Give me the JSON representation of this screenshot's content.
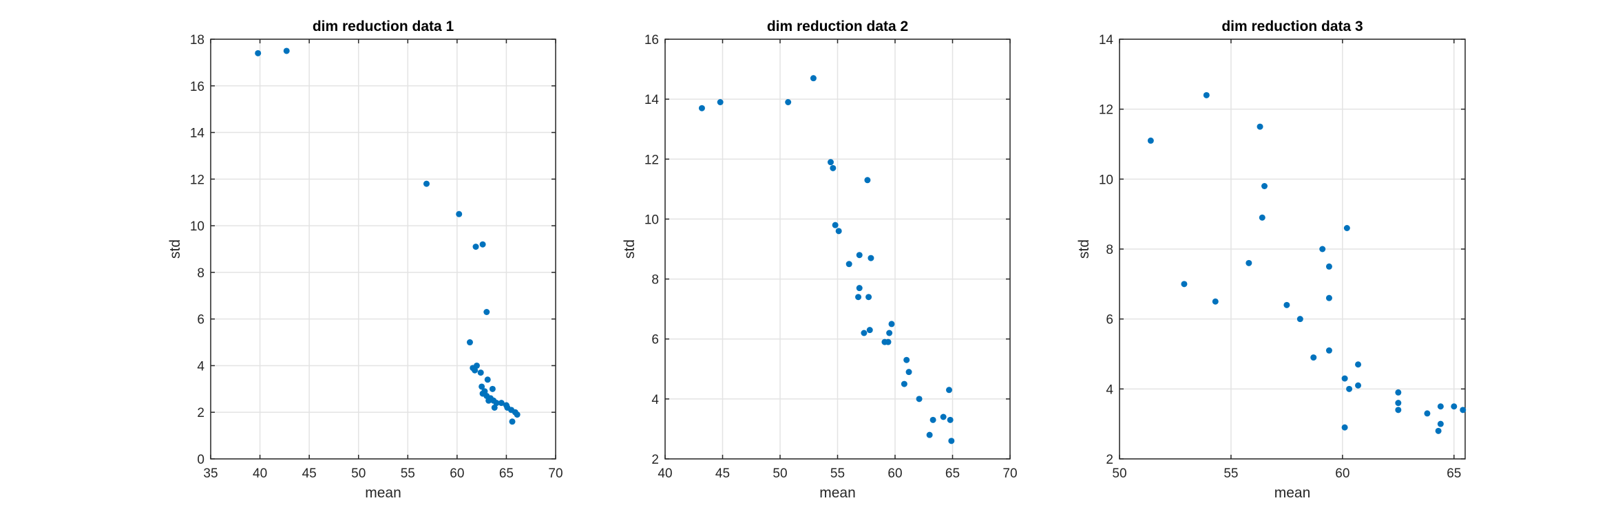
{
  "chart_data": [
    {
      "type": "scatter",
      "title": "dim reduction data 1",
      "xlabel": "mean",
      "ylabel": "std",
      "xlim": [
        35,
        70
      ],
      "ylim": [
        0,
        18
      ],
      "xticks": [
        35,
        40,
        45,
        50,
        55,
        60,
        65,
        70
      ],
      "yticks": [
        0,
        2,
        4,
        6,
        8,
        10,
        12,
        14,
        16,
        18
      ],
      "grid": true,
      "color": "#0072BD",
      "x": [
        39.8,
        42.7,
        56.9,
        60.2,
        61.9,
        62.6,
        63.0,
        61.3,
        61.6,
        62.0,
        62.4,
        61.8,
        63.1,
        62.5,
        62.8,
        63.6,
        62.6,
        63.0,
        63.4,
        63.7,
        64.0,
        63.2,
        64.5,
        63.8,
        65.0,
        65.5,
        65.9,
        66.1,
        65.6,
        65.1
      ],
      "y": [
        17.4,
        17.5,
        11.8,
        10.5,
        9.1,
        9.2,
        6.3,
        5.0,
        3.9,
        4.0,
        3.7,
        3.8,
        3.4,
        3.1,
        2.9,
        3.0,
        2.8,
        2.7,
        2.6,
        2.5,
        2.4,
        2.5,
        2.4,
        2.2,
        2.3,
        2.1,
        2.0,
        1.9,
        1.6,
        2.2
      ]
    },
    {
      "type": "scatter",
      "title": "dim reduction data 2",
      "xlabel": "mean",
      "ylabel": "std",
      "xlim": [
        40,
        70
      ],
      "ylim": [
        2,
        16
      ],
      "xticks": [
        40,
        45,
        50,
        55,
        60,
        65,
        70
      ],
      "yticks": [
        2,
        4,
        6,
        8,
        10,
        12,
        14,
        16
      ],
      "grid": true,
      "color": "#0072BD",
      "x": [
        43.2,
        44.8,
        50.7,
        52.9,
        54.4,
        54.6,
        57.6,
        54.8,
        55.1,
        56.0,
        56.9,
        57.9,
        56.9,
        56.8,
        57.7,
        57.3,
        57.8,
        59.7,
        59.5,
        59.1,
        59.4,
        61.0,
        61.2,
        60.8,
        62.1,
        64.7,
        64.2,
        63.3,
        64.8,
        63.0,
        64.9
      ],
      "y": [
        13.7,
        13.9,
        13.9,
        14.7,
        11.9,
        11.7,
        11.3,
        9.8,
        9.6,
        8.5,
        8.8,
        8.7,
        7.7,
        7.4,
        7.4,
        6.2,
        6.3,
        6.5,
        6.2,
        5.9,
        5.9,
        5.3,
        4.9,
        4.5,
        4.0,
        4.3,
        3.4,
        3.3,
        3.3,
        2.8,
        2.6
      ]
    },
    {
      "type": "scatter",
      "title": "dim reduction data 3",
      "xlabel": "mean",
      "ylabel": "std",
      "xlim": [
        50,
        65.5
      ],
      "ylim": [
        2,
        14
      ],
      "xticks": [
        50,
        55,
        60,
        65
      ],
      "yticks": [
        2,
        4,
        6,
        8,
        10,
        12,
        14
      ],
      "grid": true,
      "color": "#0072BD",
      "x": [
        51.4,
        53.9,
        56.3,
        56.5,
        56.4,
        60.2,
        59.1,
        55.8,
        59.4,
        52.9,
        54.3,
        57.5,
        58.1,
        59.4,
        58.7,
        59.4,
        60.7,
        60.1,
        60.7,
        60.3,
        62.5,
        62.5,
        62.5,
        63.8,
        64.4,
        65.0,
        65.4,
        64.4,
        64.3,
        60.1
      ],
      "y": [
        11.1,
        12.4,
        11.5,
        9.8,
        8.9,
        8.6,
        8.0,
        7.6,
        7.5,
        7.0,
        6.5,
        6.4,
        6.0,
        6.6,
        4.9,
        5.1,
        4.7,
        4.3,
        4.1,
        4.0,
        3.9,
        3.6,
        3.4,
        3.3,
        3.5,
        3.5,
        3.4,
        3.0,
        2.8,
        2.9
      ]
    }
  ]
}
